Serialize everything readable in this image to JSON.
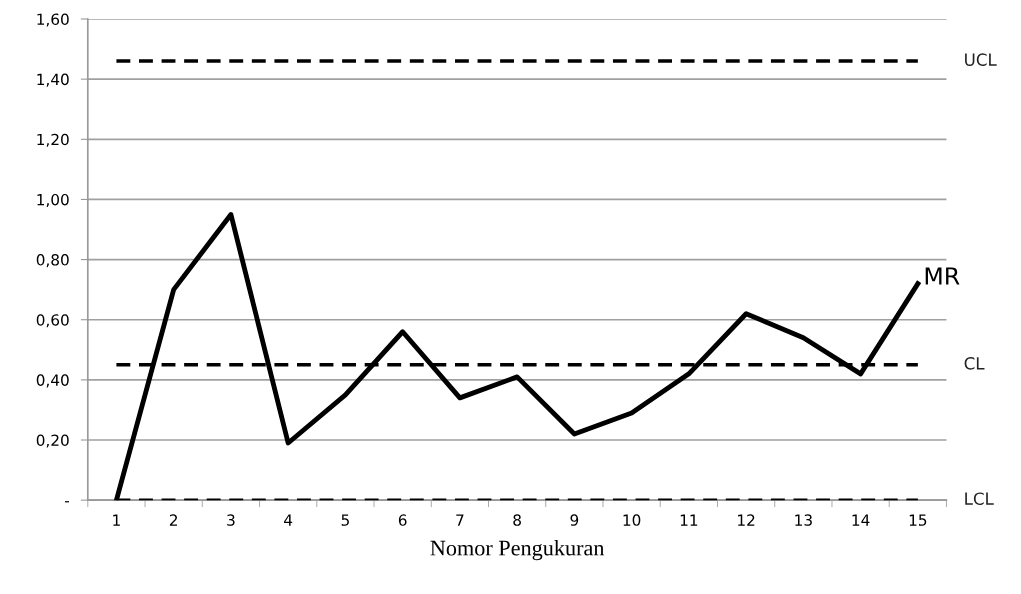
{
  "chart_data": {
    "type": "line",
    "xlabel": "Nomor Pengukuran",
    "categories": [
      "1",
      "2",
      "3",
      "4",
      "5",
      "6",
      "7",
      "8",
      "9",
      "10",
      "11",
      "12",
      "13",
      "14",
      "15"
    ],
    "series": [
      {
        "name": "MR",
        "color": "#000000",
        "values": [
          0,
          0.7,
          0.95,
          0.19,
          0.35,
          0.56,
          0.34,
          0.41,
          0.22,
          0.29,
          0.42,
          0.62,
          0.54,
          0.42,
          0.72
        ]
      }
    ],
    "ylim": [
      0,
      1.6
    ],
    "yticks": [
      {
        "value": 0,
        "label": "-"
      },
      {
        "value": 0.2,
        "label": "0,20"
      },
      {
        "value": 0.4,
        "label": "0,40"
      },
      {
        "value": 0.6,
        "label": "0,60"
      },
      {
        "value": 0.8,
        "label": "0,80"
      },
      {
        "value": 1.0,
        "label": "1,00"
      },
      {
        "value": 1.2,
        "label": "1,20"
      },
      {
        "value": 1.4,
        "label": "1,40"
      },
      {
        "value": 1.6,
        "label": "1,60"
      }
    ],
    "ref_lines": [
      {
        "axis": "y",
        "value": 1.46,
        "label": "UCL",
        "color": "#000000",
        "line_style": "dashed"
      },
      {
        "axis": "y",
        "value": 0.45,
        "label": "CL",
        "color": "#000000",
        "line_style": "dashed"
      },
      {
        "axis": "y",
        "value": 0,
        "label": "LCL",
        "color": "#000000",
        "line_style": "dashed"
      }
    ],
    "grid": "y",
    "legend": false,
    "marker": "none",
    "line_style": "solid"
  }
}
